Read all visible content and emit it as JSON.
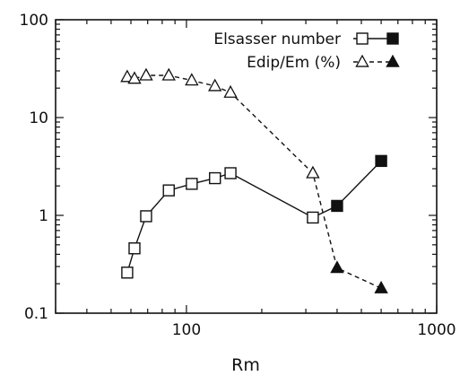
{
  "chart_data": {
    "type": "line",
    "title": "",
    "xlabel": "Rm",
    "ylabel": "",
    "xscale": "log",
    "yscale": "log",
    "xlim": [
      30,
      1000
    ],
    "ylim": [
      0.1,
      100
    ],
    "x_tick_labels": [
      "100",
      "1000"
    ],
    "y_tick_labels": [
      "0.1",
      "1",
      "10",
      "100"
    ],
    "grid": false,
    "legend_position": "top-right",
    "series": [
      {
        "name": "Elsasser number",
        "line_style": "solid",
        "color": "#111111",
        "points_open": [
          {
            "x": 58,
            "y": 0.26
          },
          {
            "x": 62,
            "y": 0.46
          },
          {
            "x": 69,
            "y": 0.98
          },
          {
            "x": 85,
            "y": 1.8
          },
          {
            "x": 105,
            "y": 2.1
          },
          {
            "x": 130,
            "y": 2.4
          },
          {
            "x": 150,
            "y": 2.7
          },
          {
            "x": 320,
            "y": 0.95
          }
        ],
        "points_filled": [
          {
            "x": 400,
            "y": 1.25
          },
          {
            "x": 600,
            "y": 3.6
          }
        ]
      },
      {
        "name": "Edip/Em (%)",
        "line_style": "dashed",
        "color": "#111111",
        "points_open": [
          {
            "x": 58,
            "y": 26
          },
          {
            "x": 62,
            "y": 25
          },
          {
            "x": 69,
            "y": 27
          },
          {
            "x": 85,
            "y": 27
          },
          {
            "x": 105,
            "y": 24
          },
          {
            "x": 130,
            "y": 21
          },
          {
            "x": 150,
            "y": 18
          },
          {
            "x": 320,
            "y": 2.7
          }
        ],
        "points_filled": [
          {
            "x": 400,
            "y": 0.29
          },
          {
            "x": 600,
            "y": 0.18
          }
        ]
      }
    ]
  }
}
